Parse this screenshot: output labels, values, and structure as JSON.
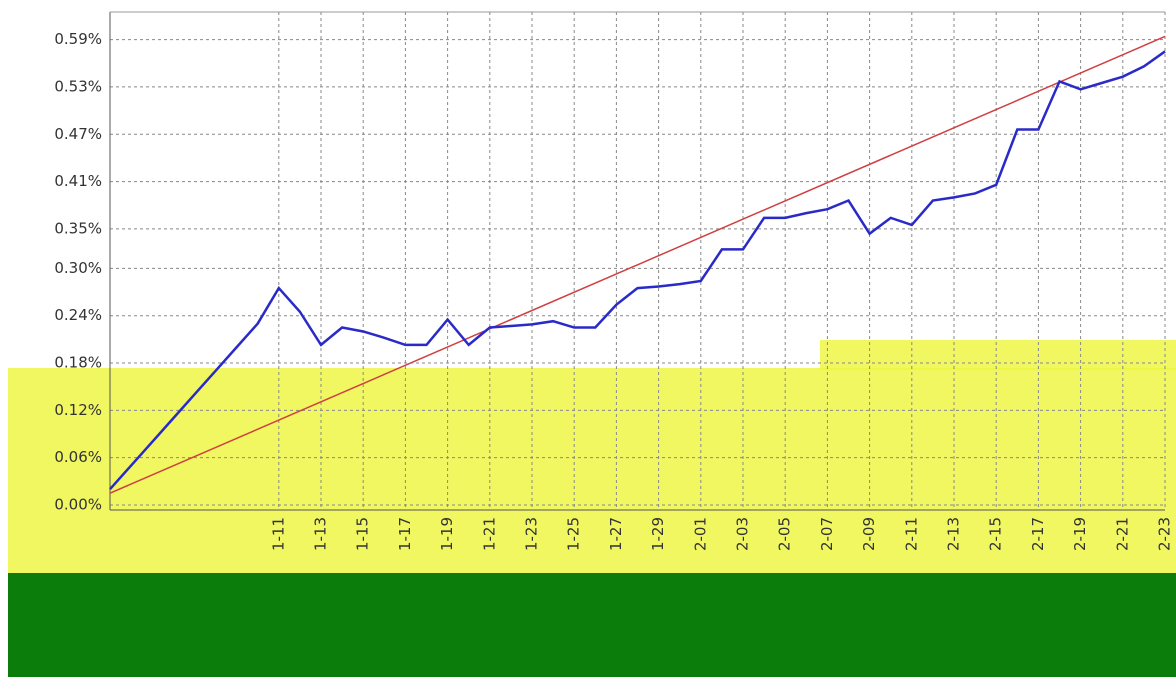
{
  "chart_data": {
    "type": "line",
    "categories": [
      null,
      null,
      null,
      null,
      null,
      null,
      null,
      null,
      "1-11",
      null,
      "1-13",
      null,
      "1-15",
      null,
      "1-17",
      null,
      "1-19",
      null,
      "1-21",
      null,
      "1-23",
      null,
      "1-25",
      null,
      "1-27",
      null,
      "1-29",
      null,
      "2-01",
      null,
      "2-03",
      null,
      "2-05",
      null,
      "2-07",
      null,
      "2-09",
      null,
      "2-11",
      null,
      "2-13",
      null,
      "2-15",
      null,
      "2-17",
      null,
      "2-19",
      null,
      "2-21",
      null,
      "2-23"
    ],
    "series": [
      {
        "color": "#2a2ac8",
        "values": [
          0.02,
          0.05,
          0.08,
          0.11,
          0.14,
          0.17,
          0.2,
          0.23,
          0.275,
          0.245,
          0.203,
          0.225,
          0.22,
          0.212,
          0.203,
          0.203,
          0.235,
          0.203,
          0.225,
          0.227,
          0.229,
          0.233,
          0.225,
          0.225,
          0.254,
          0.275,
          0.277,
          0.28,
          0.284,
          0.324,
          0.324,
          0.364,
          0.364,
          0.37,
          0.375,
          0.386,
          0.344,
          0.364,
          0.355,
          0.386,
          0.39,
          0.395,
          0.406,
          0.476,
          0.476,
          0.537,
          0.527,
          0.535,
          0.543,
          0.556,
          0.575
        ]
      }
    ],
    "trend": {
      "color": "#d04040",
      "values": [
        0.015,
        0.594
      ]
    },
    "ylim": [
      0,
      0.625
    ],
    "yticks": [
      {
        "value": 0,
        "label": "0.00%"
      },
      {
        "value": 0.06,
        "label": "0.06%"
      },
      {
        "value": 0.12,
        "label": "0.12%"
      },
      {
        "value": 0.18,
        "label": "0.18%"
      },
      {
        "value": 0.24,
        "label": "0.24%"
      },
      {
        "value": 0.3,
        "label": "0.30%"
      },
      {
        "value": 0.35,
        "label": "0.35%"
      },
      {
        "value": 0.41,
        "label": "0.41%"
      },
      {
        "value": 0.47,
        "label": "0.47%"
      },
      {
        "value": 0.53,
        "label": "0.53%"
      },
      {
        "value": 0.59,
        "label": "0.59%"
      }
    ],
    "grid": true
  }
}
